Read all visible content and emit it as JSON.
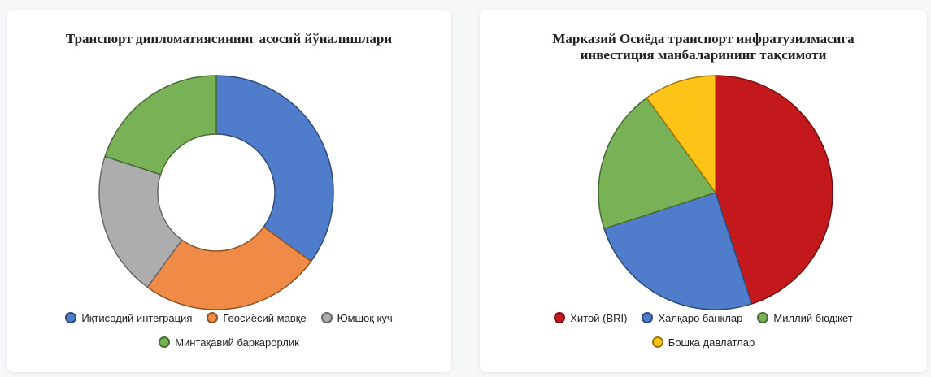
{
  "chart_data": [
    {
      "type": "donut",
      "title": "Транспорт дипломатиясининг асосий йўналишлари",
      "categories": [
        "Иқтисодий интеграция",
        "Геосиёсий мавқе",
        "Юмшоқ куч",
        "Минтақавий барқарорлик"
      ],
      "values": [
        35,
        25,
        20,
        20
      ],
      "colors": [
        "#4f7dcb",
        "#ef8b47",
        "#adadad",
        "#79b256"
      ]
    },
    {
      "type": "pie",
      "title": "Марказий Осиёда транспорт инфратузилмасига инвестиция манбаларининг тақсимоти",
      "categories": [
        "Хитой (BRI)",
        "Халқаро банклар",
        "Миллий бюджет",
        "Бошқа давлатлар"
      ],
      "values": [
        45,
        25,
        20,
        10
      ],
      "colors": [
        "#c4191c",
        "#4f7dcb",
        "#79b256",
        "#fdc417"
      ]
    }
  ]
}
